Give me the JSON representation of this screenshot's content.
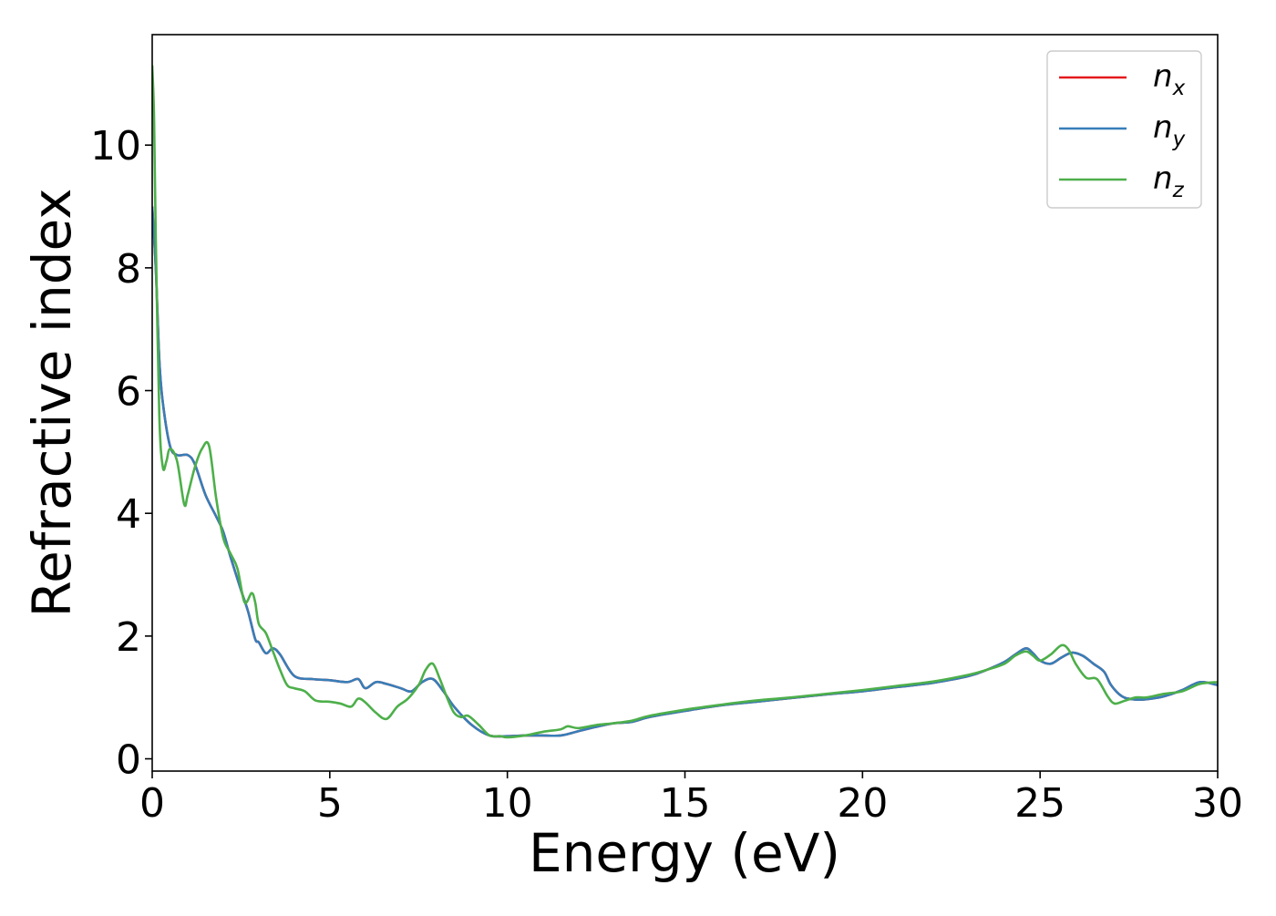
{
  "chart_data": {
    "type": "line",
    "title": "",
    "xlabel": "Energy (eV)",
    "ylabel": "Refractive index",
    "xlim": [
      0,
      30
    ],
    "ylim": [
      -0.2,
      11.8
    ],
    "xticks": [
      0,
      5,
      10,
      15,
      20,
      25,
      30
    ],
    "xtick_labels": [
      "0",
      "5",
      "10",
      "15",
      "20",
      "25",
      "30"
    ],
    "yticks": [
      0,
      2,
      4,
      6,
      8,
      10
    ],
    "ytick_labels": [
      "0",
      "2",
      "4",
      "6",
      "8",
      "10"
    ],
    "grid": false,
    "legend_position": "top-right",
    "series": [
      {
        "name": "n_x",
        "label_base": "n",
        "label_sub": "x",
        "color": "#e41a1c",
        "x": [
          0.0,
          0.1,
          0.2,
          0.3,
          0.5,
          0.7,
          1.0,
          1.2,
          1.5,
          1.8,
          2.0,
          2.2,
          2.5,
          2.7,
          2.9,
          3.0,
          3.2,
          3.4,
          3.6,
          4.0,
          4.5,
          5.0,
          5.5,
          5.8,
          6.0,
          6.3,
          6.6,
          7.0,
          7.3,
          7.6,
          7.9,
          8.2,
          8.5,
          9.0,
          9.5,
          10.0,
          10.5,
          11.0,
          11.5,
          12.0,
          12.5,
          13.0,
          13.5,
          14.0,
          15.0,
          16.0,
          17.0,
          18.0,
          19.0,
          20.0,
          21.0,
          22.0,
          23.0,
          23.5,
          24.0,
          24.3,
          24.6,
          24.8,
          25.0,
          25.3,
          25.6,
          25.9,
          26.2,
          26.5,
          26.8,
          27.0,
          27.3,
          27.6,
          28.0,
          28.5,
          29.0,
          29.5,
          30.0
        ],
        "values": [
          9.0,
          8.0,
          6.5,
          5.8,
          5.1,
          4.95,
          4.95,
          4.8,
          4.3,
          3.95,
          3.7,
          3.3,
          2.75,
          2.4,
          1.95,
          1.9,
          1.72,
          1.8,
          1.7,
          1.35,
          1.3,
          1.28,
          1.25,
          1.3,
          1.15,
          1.25,
          1.22,
          1.15,
          1.1,
          1.25,
          1.3,
          1.1,
          0.85,
          0.55,
          0.38,
          0.37,
          0.38,
          0.38,
          0.38,
          0.45,
          0.52,
          0.58,
          0.6,
          0.68,
          0.78,
          0.87,
          0.93,
          0.99,
          1.05,
          1.1,
          1.17,
          1.24,
          1.35,
          1.45,
          1.58,
          1.7,
          1.8,
          1.72,
          1.6,
          1.55,
          1.65,
          1.73,
          1.68,
          1.55,
          1.42,
          1.2,
          1.02,
          0.97,
          0.97,
          1.02,
          1.12,
          1.25,
          1.2
        ]
      },
      {
        "name": "n_y",
        "label_base": "n",
        "label_sub": "y",
        "color": "#377eb8",
        "x": [
          0.0,
          0.1,
          0.2,
          0.3,
          0.5,
          0.7,
          1.0,
          1.2,
          1.5,
          1.8,
          2.0,
          2.2,
          2.5,
          2.7,
          2.9,
          3.0,
          3.2,
          3.4,
          3.6,
          4.0,
          4.5,
          5.0,
          5.5,
          5.8,
          6.0,
          6.3,
          6.6,
          7.0,
          7.3,
          7.6,
          7.9,
          8.2,
          8.5,
          9.0,
          9.5,
          10.0,
          10.5,
          11.0,
          11.5,
          12.0,
          12.5,
          13.0,
          13.5,
          14.0,
          15.0,
          16.0,
          17.0,
          18.0,
          19.0,
          20.0,
          21.0,
          22.0,
          23.0,
          23.5,
          24.0,
          24.3,
          24.6,
          24.8,
          25.0,
          25.3,
          25.6,
          25.9,
          26.2,
          26.5,
          26.8,
          27.0,
          27.3,
          27.6,
          28.0,
          28.5,
          29.0,
          29.5,
          30.0
        ],
        "values": [
          9.0,
          8.0,
          6.5,
          5.8,
          5.1,
          4.95,
          4.95,
          4.8,
          4.3,
          3.95,
          3.7,
          3.3,
          2.75,
          2.4,
          1.95,
          1.9,
          1.72,
          1.8,
          1.7,
          1.35,
          1.3,
          1.28,
          1.25,
          1.3,
          1.15,
          1.25,
          1.22,
          1.15,
          1.1,
          1.25,
          1.3,
          1.1,
          0.85,
          0.55,
          0.38,
          0.37,
          0.38,
          0.38,
          0.38,
          0.45,
          0.52,
          0.58,
          0.6,
          0.68,
          0.78,
          0.87,
          0.93,
          0.99,
          1.05,
          1.1,
          1.17,
          1.24,
          1.35,
          1.45,
          1.58,
          1.7,
          1.8,
          1.72,
          1.6,
          1.55,
          1.65,
          1.73,
          1.68,
          1.55,
          1.42,
          1.2,
          1.02,
          0.97,
          0.97,
          1.02,
          1.12,
          1.25,
          1.2
        ]
      },
      {
        "name": "n_z",
        "label_base": "n",
        "label_sub": "z",
        "color": "#4daf4a",
        "x": [
          0.0,
          0.05,
          0.1,
          0.2,
          0.3,
          0.4,
          0.5,
          0.7,
          0.9,
          1.0,
          1.2,
          1.4,
          1.6,
          1.8,
          2.0,
          2.2,
          2.4,
          2.6,
          2.8,
          2.9,
          3.0,
          3.2,
          3.4,
          3.6,
          3.8,
          4.0,
          4.3,
          4.6,
          5.0,
          5.3,
          5.6,
          5.8,
          6.0,
          6.3,
          6.6,
          6.9,
          7.2,
          7.5,
          7.7,
          7.9,
          8.1,
          8.3,
          8.5,
          8.7,
          8.9,
          9.2,
          9.5,
          9.8,
          10.0,
          10.5,
          11.0,
          11.5,
          11.7,
          12.0,
          12.5,
          13.0,
          13.5,
          14.0,
          15.0,
          16.0,
          17.0,
          18.0,
          19.0,
          20.0,
          21.0,
          22.0,
          23.0,
          23.5,
          24.0,
          24.3,
          24.6,
          24.8,
          25.0,
          25.3,
          25.6,
          25.8,
          26.0,
          26.3,
          26.6,
          26.9,
          27.1,
          27.4,
          27.7,
          28.0,
          28.5,
          29.0,
          29.5,
          30.0
        ],
        "values": [
          11.3,
          10.5,
          8.5,
          5.6,
          4.75,
          4.85,
          5.05,
          4.85,
          4.15,
          4.3,
          4.75,
          5.05,
          5.1,
          4.25,
          3.6,
          3.35,
          3.1,
          2.55,
          2.7,
          2.55,
          2.2,
          2.05,
          1.75,
          1.45,
          1.2,
          1.15,
          1.1,
          0.95,
          0.93,
          0.9,
          0.85,
          0.98,
          0.92,
          0.75,
          0.65,
          0.85,
          0.98,
          1.2,
          1.45,
          1.55,
          1.3,
          1.0,
          0.75,
          0.68,
          0.7,
          0.55,
          0.38,
          0.37,
          0.35,
          0.38,
          0.44,
          0.48,
          0.53,
          0.5,
          0.55,
          0.58,
          0.62,
          0.7,
          0.8,
          0.88,
          0.95,
          1.0,
          1.06,
          1.12,
          1.19,
          1.26,
          1.37,
          1.45,
          1.55,
          1.68,
          1.75,
          1.68,
          1.6,
          1.7,
          1.85,
          1.78,
          1.55,
          1.32,
          1.3,
          1.02,
          0.9,
          0.95,
          1.0,
          1.0,
          1.06,
          1.1,
          1.22,
          1.25
        ]
      }
    ]
  }
}
